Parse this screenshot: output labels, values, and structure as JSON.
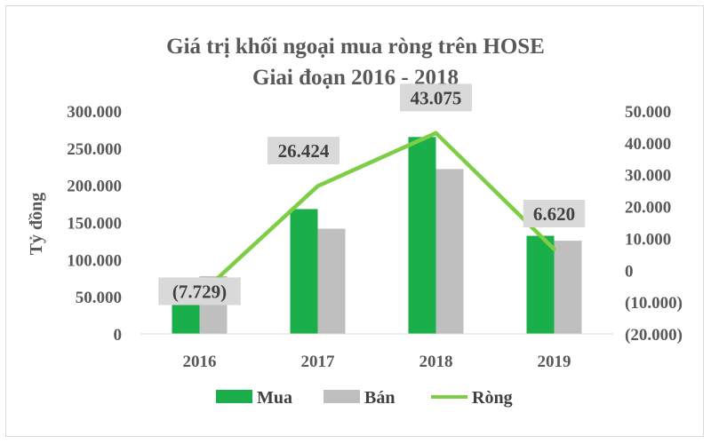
{
  "chart_data": {
    "type": "bar",
    "title": "Giá trị khối ngoại mua ròng trên HOSE",
    "subtitle": "Giai đoạn 2016 - 2018",
    "ylabel": "Tỷ đồng",
    "categories": [
      "2016",
      "2017",
      "2018",
      "2019"
    ],
    "series": [
      {
        "name": "Mua",
        "kind": "bar",
        "axis": "left",
        "color": "#1aaf4b",
        "values": [
          70000,
          168000,
          265000,
          132000
        ]
      },
      {
        "name": "Bán",
        "kind": "bar",
        "axis": "left",
        "color": "#bfbfbf",
        "values": [
          77729,
          141576,
          221925,
          125380
        ]
      },
      {
        "name": "Ròng",
        "kind": "line",
        "axis": "right",
        "color": "#7dcd45",
        "values": [
          -7729,
          26424,
          43075,
          6620
        ]
      }
    ],
    "data_labels": [
      "(7.729)",
      "26.424",
      "43.075",
      "6.620"
    ],
    "left_axis": {
      "ylim": [
        0,
        300000
      ],
      "ticks": [
        300000,
        250000,
        200000,
        150000,
        100000,
        50000,
        0
      ],
      "tick_labels": [
        "300.000",
        "250.000",
        "200.000",
        "150.000",
        "100.000",
        "50.000",
        "0"
      ]
    },
    "right_axis": {
      "ylim": [
        -20000,
        50000
      ],
      "ticks": [
        50000,
        40000,
        30000,
        20000,
        10000,
        0,
        -10000,
        -20000
      ],
      "tick_labels": [
        "50.000",
        "40.000",
        "30.000",
        "20.000",
        "10.000",
        "0",
        "(10.000)",
        "(20.000)"
      ]
    },
    "legend_position": "bottom",
    "grid": false
  }
}
